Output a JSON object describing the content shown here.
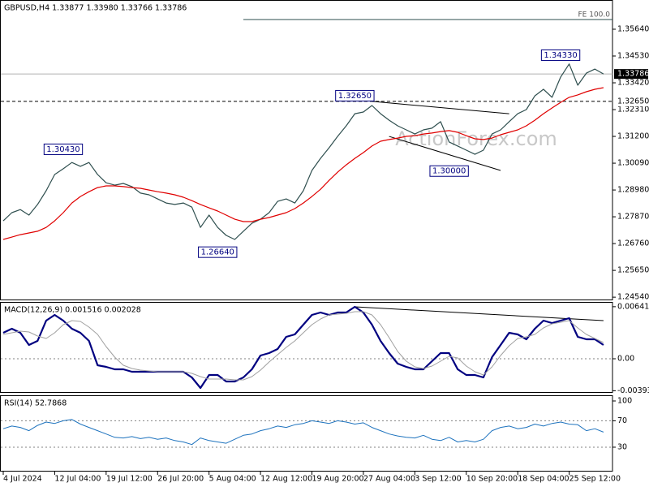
{
  "chart_data": [
    {
      "type": "line",
      "title": "GBPUSD,H4  1.33877 1.33980 1.33766 1.33786",
      "watermark": "ActionForex.com",
      "ylim": [
        1.2441,
        1.3685
      ],
      "yticks": [
        {
          "value": 1.3564,
          "label": "1.35640"
        },
        {
          "value": 1.3453,
          "label": "1.34530"
        },
        {
          "value": 1.3342,
          "label": "1.33420"
        },
        {
          "value": 1.3231,
          "label": "1.32310"
        },
        {
          "value": 1.312,
          "label": "1.31200"
        },
        {
          "value": 1.3009,
          "label": "1.30090"
        },
        {
          "value": 1.2898,
          "label": "1.28980"
        },
        {
          "value": 1.2787,
          "label": "1.27870"
        },
        {
          "value": 1.2676,
          "label": "1.26760"
        },
        {
          "value": 1.2565,
          "label": "1.25650"
        },
        {
          "value": 1.2454,
          "label": "1.24540"
        }
      ],
      "series": [
        {
          "color": "#2f4f4f",
          "values": [
            1.277,
            1.2804,
            1.2817,
            1.2794,
            1.2838,
            1.2895,
            1.2962,
            1.2986,
            1.3012,
            1.2996,
            1.3012,
            1.2962,
            1.2928,
            1.2918,
            1.2925,
            1.2912,
            1.2885,
            1.2878,
            1.2861,
            1.2844,
            1.2838,
            1.2844,
            1.2827,
            1.2743,
            1.2794,
            1.2743,
            1.271,
            1.2693,
            1.2727,
            1.276,
            1.2777,
            1.2804,
            1.2851,
            1.2861,
            1.2844,
            1.2895,
            1.2979,
            1.3029,
            1.3073,
            1.312,
            1.3164,
            1.3214,
            1.3221,
            1.3248,
            1.3214,
            1.3187,
            1.3164,
            1.3147,
            1.313,
            1.3147,
            1.3154,
            1.3181,
            1.3097,
            1.308,
            1.3063,
            1.3046,
            1.3063,
            1.313,
            1.3147,
            1.3181,
            1.3214,
            1.3231,
            1.3288,
            1.3315,
            1.3282,
            1.3366,
            1.342,
            1.3332,
            1.3382,
            1.3399,
            1.33786
          ]
        },
        {
          "color": "#e00000",
          "values": [
            1.2693,
            1.2703,
            1.2713,
            1.272,
            1.2727,
            1.2743,
            1.277,
            1.2804,
            1.2844,
            1.2871,
            1.2891,
            1.2908,
            1.2915,
            1.2915,
            1.2912,
            1.2908,
            1.2905,
            1.2898,
            1.2891,
            1.2885,
            1.2878,
            1.2868,
            1.2854,
            1.2838,
            1.2824,
            1.2811,
            1.2794,
            1.2777,
            1.2767,
            1.2767,
            1.2777,
            1.2784,
            1.2794,
            1.2804,
            1.2821,
            1.2844,
            1.2871,
            1.2901,
            1.2938,
            1.2972,
            1.3002,
            1.3029,
            1.3053,
            1.308,
            1.31,
            1.3107,
            1.3113,
            1.312,
            1.3123,
            1.313,
            1.3134,
            1.314,
            1.3144,
            1.3137,
            1.3123,
            1.311,
            1.3107,
            1.3113,
            1.3127,
            1.3137,
            1.3147,
            1.3164,
            1.3187,
            1.3214,
            1.3238,
            1.3261,
            1.3282,
            1.3292,
            1.3305,
            1.3315,
            1.3322
          ]
        }
      ],
      "annotations": [
        {
          "label": "1.30430",
          "value": 1.3043,
          "index": 7
        },
        {
          "label": "1.26640",
          "value": 1.2664,
          "index": 25
        },
        {
          "label": "1.32650",
          "value": 1.3265,
          "index": 41
        },
        {
          "label": "1.30000",
          "value": 1.3,
          "index": 52
        },
        {
          "label": "1.34330",
          "value": 1.3433,
          "index": 65
        }
      ],
      "fe": {
        "label": "FE 100.0",
        "value": 1.3604,
        "index": 28
      },
      "level": {
        "value": 1.3265,
        "label": "1.32650"
      },
      "last_price": {
        "value": 1.33786,
        "label": "1.33786"
      },
      "trendlines": [
        {
          "from": [
            43,
            1.3265
          ],
          "to": [
            59,
            1.3214
          ]
        },
        {
          "from": [
            45,
            1.312
          ],
          "to": [
            58,
            1.2979
          ]
        }
      ]
    },
    {
      "type": "line",
      "title": "MACD(12,26,9) 0.001516 0.002028",
      "ylim": [
        -0.0042,
        0.007
      ],
      "yticks": [
        0.006413,
        {
          "value": 0,
          "label": "0.00"
        },
        -0.003938
      ],
      "levels": [
        0
      ],
      "series": [
        {
          "color": "#000080",
          "width": 2.2,
          "values": [
            0.0032,
            0.0037,
            0.0032,
            0.0017,
            0.0022,
            0.0047,
            0.0054,
            0.0047,
            0.0037,
            0.0032,
            0.0022,
            -0.0008,
            -0.001,
            -0.0013,
            -0.0013,
            -0.0016,
            -0.0016,
            -0.0016,
            -0.0016,
            -0.0016,
            -0.0016,
            -0.0016,
            -0.0023,
            -0.0036,
            -0.002,
            -0.002,
            -0.0028,
            -0.0028,
            -0.0023,
            -0.0013,
            0.0004,
            0.0007,
            0.0012,
            0.0027,
            0.003,
            0.0042,
            0.0054,
            0.0057,
            0.0054,
            0.0057,
            0.0057,
            0.0064,
            0.0057,
            0.0042,
            0.0022,
            0.0007,
            -0.0006,
            -0.001,
            -0.0013,
            -0.0013,
            -0.0003,
            0.0007,
            0.0007,
            -0.0013,
            -0.002,
            -0.002,
            -0.0023,
            0.0002,
            0.0017,
            0.0032,
            0.003,
            0.0024,
            0.0037,
            0.0047,
            0.0044,
            0.0047,
            0.005,
            0.0027,
            0.0024,
            0.0024,
            0.0017
          ]
        },
        {
          "color": "#a0a0a0",
          "width": 1,
          "values": [
            0.003,
            0.0032,
            0.0034,
            0.0033,
            0.0028,
            0.0025,
            0.0032,
            0.0042,
            0.0047,
            0.0046,
            0.0039,
            0.003,
            0.0015,
            0.0002,
            -0.0008,
            -0.0012,
            -0.0014,
            -0.0015,
            -0.0016,
            -0.0016,
            -0.0016,
            -0.0016,
            -0.0018,
            -0.0022,
            -0.0025,
            -0.0025,
            -0.0025,
            -0.0026,
            -0.0026,
            -0.0022,
            -0.0014,
            -0.0004,
            0.0005,
            0.0014,
            0.0022,
            0.0032,
            0.0042,
            0.0049,
            0.0054,
            0.0055,
            0.0056,
            0.0058,
            0.0058,
            0.0054,
            0.0042,
            0.0026,
            0.0009,
            -0.0003,
            -0.001,
            -0.0012,
            -0.0009,
            -0.0003,
            0.0003,
            0.0001,
            -0.0009,
            -0.0016,
            -0.002,
            -0.001,
            0.0004,
            0.0016,
            0.0025,
            0.0027,
            0.003,
            0.0038,
            0.0043,
            0.0045,
            0.0047,
            0.0038,
            0.003,
            0.0025,
            0.002
          ]
        }
      ],
      "trendlines": [
        {
          "from": [
            41,
            0.0064
          ],
          "to": [
            70,
            0.0047
          ]
        }
      ]
    },
    {
      "type": "line",
      "title": "RSI(14) 52.7868",
      "ylim": [
        -6.9,
        108.6
      ],
      "yticks": [
        100,
        70,
        30
      ],
      "levels": [
        70,
        30
      ],
      "categories": [
        "4 Jul 2024",
        null,
        null,
        null,
        null,
        null,
        "12 Jul 04:00",
        null,
        null,
        null,
        null,
        null,
        "19 Jul 12:00",
        null,
        null,
        null,
        null,
        null,
        "26 Jul 20:00",
        null,
        null,
        null,
        null,
        null,
        "5 Aug 04:00",
        null,
        null,
        null,
        null,
        null,
        "12 Aug 12:00",
        null,
        null,
        null,
        null,
        null,
        "19 Aug 20:00",
        null,
        null,
        null,
        null,
        null,
        "27 Aug 04:00",
        null,
        null,
        null,
        null,
        null,
        "3 Sep 12:00",
        null,
        null,
        null,
        null,
        null,
        "10 Sep 20:00",
        null,
        null,
        null,
        null,
        null,
        "18 Sep 04:00",
        null,
        null,
        null,
        null,
        null,
        "25 Sep 12:00",
        null,
        null,
        null,
        null
      ],
      "series": [
        {
          "color": "#1e73be",
          "width": 1,
          "values": [
            58,
            62,
            60,
            55,
            63,
            68,
            66,
            70,
            72,
            65,
            60,
            55,
            50,
            45,
            44,
            46,
            43,
            45,
            42,
            44,
            40,
            38,
            34,
            44,
            40,
            38,
            36,
            42,
            48,
            50,
            55,
            58,
            62,
            60,
            64,
            66,
            70,
            68,
            66,
            70,
            68,
            65,
            67,
            60,
            55,
            50,
            47,
            45,
            44,
            48,
            42,
            40,
            45,
            38,
            40,
            38,
            42,
            55,
            60,
            62,
            58,
            60,
            65,
            62,
            66,
            68,
            65,
            64,
            55,
            58,
            52.7868
          ]
        }
      ]
    }
  ]
}
